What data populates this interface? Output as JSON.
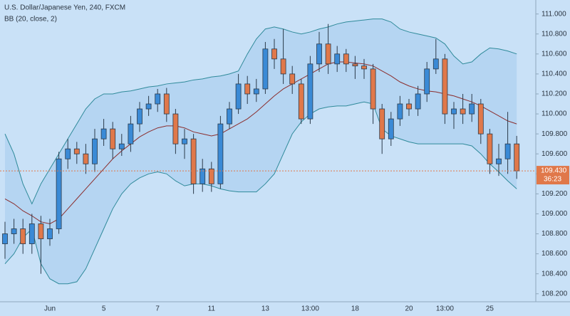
{
  "chart_data": {
    "type": "candlestick",
    "title": "U.S. Dollar/Japanese Yen, 240, FXCM",
    "indicator": "BB (20, close, 2)",
    "last_price_label": "109.430",
    "countdown": "36:23",
    "categories": [
      null,
      null,
      null,
      null,
      null,
      "Jun",
      null,
      null,
      null,
      null,
      null,
      "5",
      null,
      null,
      null,
      null,
      null,
      "7",
      null,
      null,
      null,
      null,
      null,
      "11",
      null,
      null,
      null,
      null,
      null,
      "13",
      null,
      null,
      null,
      null,
      "13:00",
      null,
      null,
      null,
      null,
      "18",
      null,
      null,
      null,
      null,
      null,
      "20",
      null,
      null,
      null,
      "13:00",
      null,
      null,
      null,
      null,
      "25",
      null,
      null,
      null
    ],
    "open": [
      108.7,
      108.8,
      108.85,
      108.7,
      108.9,
      108.75,
      108.85,
      109.55,
      109.65,
      109.6,
      109.5,
      109.75,
      109.85,
      109.65,
      109.7,
      109.9,
      110.05,
      110.1,
      110.2,
      110.0,
      109.7,
      109.75,
      109.3,
      109.45,
      109.3,
      109.9,
      110.05,
      110.3,
      110.2,
      110.25,
      110.65,
      110.55,
      110.4,
      110.3,
      109.95,
      110.5,
      110.7,
      110.5,
      110.6,
      110.5,
      110.48,
      110.45,
      110.05,
      109.75,
      109.95,
      110.1,
      110.05,
      110.2,
      110.45,
      110.55,
      110.0,
      110.05,
      110.0,
      110.1,
      109.8,
      109.5,
      109.55,
      109.7
    ],
    "high": [
      108.92,
      108.95,
      108.95,
      109.0,
      108.98,
      108.95,
      109.62,
      109.75,
      109.72,
      109.7,
      109.85,
      109.95,
      109.92,
      109.8,
      109.98,
      110.12,
      110.18,
      110.25,
      110.26,
      110.05,
      109.85,
      109.8,
      109.55,
      109.52,
      109.98,
      110.12,
      110.4,
      110.38,
      110.35,
      110.72,
      110.75,
      110.85,
      110.48,
      110.35,
      110.58,
      110.82,
      110.9,
      110.68,
      110.65,
      110.58,
      110.55,
      110.5,
      110.1,
      110.02,
      110.18,
      110.15,
      110.28,
      110.52,
      110.75,
      110.6,
      110.12,
      110.2,
      110.2,
      110.15,
      109.85,
      109.7,
      110.02,
      109.78
    ],
    "low": [
      108.55,
      108.7,
      108.6,
      108.6,
      108.4,
      108.68,
      108.8,
      109.45,
      109.5,
      109.4,
      109.42,
      109.68,
      109.55,
      109.58,
      109.62,
      109.82,
      109.98,
      110.02,
      109.92,
      109.6,
      109.55,
      109.2,
      109.22,
      109.22,
      109.25,
      109.85,
      110.0,
      110.1,
      110.12,
      110.2,
      110.45,
      110.3,
      110.2,
      109.9,
      109.9,
      110.42,
      110.4,
      110.42,
      110.42,
      110.35,
      110.35,
      109.9,
      109.6,
      109.68,
      109.88,
      109.98,
      109.98,
      110.12,
      110.4,
      109.9,
      109.85,
      109.9,
      109.92,
      109.7,
      109.4,
      109.38,
      109.4,
      109.35
    ],
    "close": [
      108.8,
      108.85,
      108.7,
      108.9,
      108.75,
      108.85,
      109.55,
      109.65,
      109.6,
      109.5,
      109.75,
      109.85,
      109.65,
      109.7,
      109.9,
      110.05,
      110.1,
      110.2,
      110.0,
      109.7,
      109.75,
      109.3,
      109.45,
      109.3,
      109.9,
      110.05,
      110.3,
      110.2,
      110.25,
      110.65,
      110.55,
      110.4,
      110.3,
      109.95,
      110.5,
      110.7,
      110.5,
      110.6,
      110.5,
      110.48,
      110.45,
      110.05,
      109.75,
      109.95,
      110.1,
      110.05,
      110.2,
      110.45,
      110.55,
      110.0,
      110.05,
      110.0,
      110.1,
      109.8,
      109.5,
      109.55,
      109.7,
      109.43
    ],
    "up_color": "#3a8ad6",
    "down_color": "#e0784a",
    "bands": [
      {
        "color": "#2f8a9a",
        "values": [
          109.8,
          109.6,
          109.3,
          109.1,
          109.3,
          109.45,
          109.6,
          109.75,
          109.9,
          110.05,
          110.15,
          110.2,
          110.2,
          110.22,
          110.23,
          110.25,
          110.27,
          110.28,
          110.3,
          110.31,
          110.32,
          110.34,
          110.35,
          110.37,
          110.38,
          110.4,
          110.43,
          110.6,
          110.75,
          110.85,
          110.87,
          110.85,
          110.82,
          110.8,
          110.82,
          110.85,
          110.87,
          110.9,
          110.92,
          110.93,
          110.94,
          110.95,
          110.95,
          110.92,
          110.85,
          110.82,
          110.8,
          110.78,
          110.76,
          110.7,
          110.58,
          110.5,
          110.52,
          110.6,
          110.66,
          110.65,
          110.63,
          110.6
        ]
      },
      {
        "color": "#8b2e2e",
        "values": [
          109.15,
          109.1,
          109.03,
          108.98,
          108.92,
          108.9,
          108.95,
          109.05,
          109.15,
          109.25,
          109.35,
          109.45,
          109.55,
          109.63,
          109.7,
          109.77,
          109.82,
          109.86,
          109.88,
          109.88,
          109.86,
          109.82,
          109.8,
          109.78,
          109.8,
          109.85,
          109.9,
          109.95,
          110.02,
          110.1,
          110.18,
          110.25,
          110.3,
          110.35,
          110.4,
          110.45,
          110.5,
          110.52,
          110.52,
          110.51,
          110.5,
          110.48,
          110.43,
          110.38,
          110.32,
          110.28,
          110.25,
          110.23,
          110.22,
          110.2,
          110.18,
          110.15,
          110.12,
          110.08,
          110.03,
          109.98,
          109.93,
          109.9
        ]
      },
      {
        "color": "#2f8a9a",
        "values": [
          108.5,
          108.6,
          108.76,
          108.85,
          108.5,
          108.35,
          108.3,
          108.3,
          108.32,
          108.45,
          108.65,
          108.85,
          109.05,
          109.2,
          109.3,
          109.36,
          109.4,
          109.42,
          109.4,
          109.33,
          109.28,
          109.3,
          109.3,
          109.28,
          109.25,
          109.23,
          109.22,
          109.22,
          109.22,
          109.3,
          109.4,
          109.6,
          109.8,
          109.92,
          110.0,
          110.05,
          110.07,
          110.08,
          110.08,
          110.1,
          110.12,
          110.1,
          109.85,
          109.78,
          109.75,
          109.72,
          109.7,
          109.7,
          109.7,
          109.7,
          109.7,
          109.7,
          109.68,
          109.6,
          109.5,
          109.42,
          109.33,
          109.25
        ]
      }
    ],
    "band_fill": "#a9cdee",
    "ylim": [
      108.12,
      111.14
    ],
    "yticks": [
      {
        "value": 108.2,
        "label": "108.200"
      },
      {
        "value": 108.4,
        "label": "108.400"
      },
      {
        "value": 108.6,
        "label": "108.600"
      },
      {
        "value": 108.8,
        "label": "108.800"
      },
      {
        "value": 109,
        "label": "109.000"
      },
      {
        "value": 109.2,
        "label": "109.200"
      },
      {
        "value": 109.4,
        "label": "109.400"
      },
      {
        "value": 109.6,
        "label": "109.600"
      },
      {
        "value": 109.8,
        "label": "109.800"
      },
      {
        "value": 110,
        "label": "110.000"
      },
      {
        "value": 110.2,
        "label": "110.200"
      },
      {
        "value": 110.4,
        "label": "110.400"
      },
      {
        "value": 110.6,
        "label": "110.600"
      },
      {
        "value": 110.8,
        "label": "110.800"
      },
      {
        "value": 111,
        "label": "111.000"
      }
    ],
    "grid": false
  }
}
